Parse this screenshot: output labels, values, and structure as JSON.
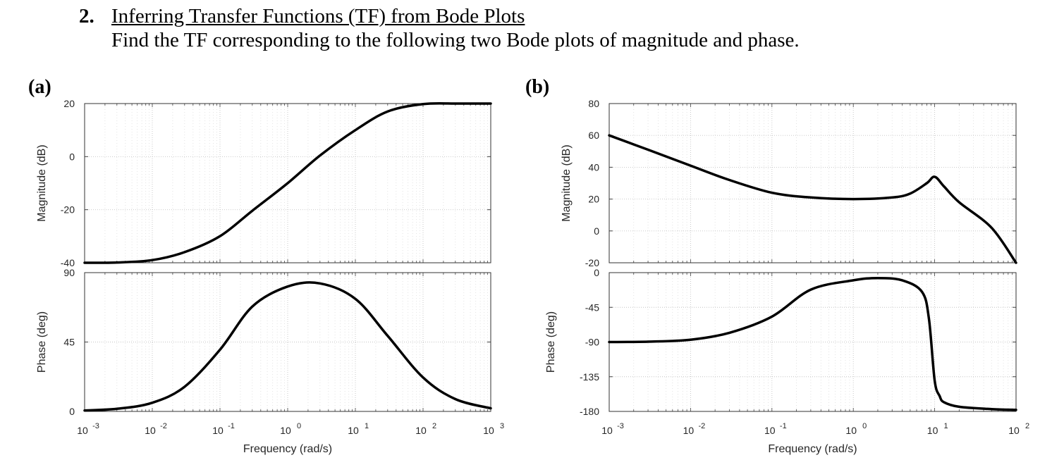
{
  "heading": {
    "number": "2.",
    "title": "Inferring Transfer Functions (TF) from Bode Plots",
    "subtitle": "Find the TF corresponding to the following two Bode plots of magnitude and phase."
  },
  "chart_data": [
    {
      "panel": "(a)",
      "subplot": "magnitude",
      "type": "line",
      "ylabel": "Magnitude (dB)",
      "xscale": "log",
      "xlim": [
        0.001,
        1000
      ],
      "ylim": [
        -40,
        20
      ],
      "yticks": [
        "-40",
        "-20",
        "0",
        "20"
      ],
      "grid": true,
      "series": [
        {
          "x": [
            0.001,
            0.003,
            0.01,
            0.03,
            0.1,
            0.3,
            1,
            3,
            10,
            30,
            100,
            300,
            1000
          ],
          "values": [
            -40,
            -39.9,
            -39,
            -36,
            -30,
            -20.4,
            -10,
            0.4,
            10,
            17,
            19.8,
            20,
            20
          ]
        }
      ]
    },
    {
      "panel": "(a)",
      "subplot": "phase",
      "type": "line",
      "ylabel": "Phase (deg)",
      "xlabel": "Frequency  (rad/s)",
      "xscale": "log",
      "xlim": [
        0.001,
        1000
      ],
      "ylim": [
        0,
        90
      ],
      "yticks": [
        "0",
        "45",
        "90"
      ],
      "xticks": [
        {
          "base": "10",
          "exp": "-3"
        },
        {
          "base": "10",
          "exp": "-2"
        },
        {
          "base": "10",
          "exp": "-1"
        },
        {
          "base": "10",
          "exp": "0"
        },
        {
          "base": "10",
          "exp": "1"
        },
        {
          "base": "10",
          "exp": "2"
        },
        {
          "base": "10",
          "exp": "3"
        }
      ],
      "grid": true,
      "series": [
        {
          "x": [
            0.001,
            0.003,
            0.01,
            0.03,
            0.1,
            0.3,
            1,
            3,
            10,
            30,
            100,
            300,
            1000
          ],
          "values": [
            0.6,
            1.7,
            5.6,
            16,
            40,
            68,
            81,
            83,
            73,
            49,
            22,
            8,
            2
          ]
        }
      ]
    },
    {
      "panel": "(b)",
      "subplot": "magnitude",
      "type": "line",
      "ylabel": "Magnitude (dB)",
      "xscale": "log",
      "xlim": [
        0.001,
        100
      ],
      "ylim": [
        -20,
        80
      ],
      "yticks": [
        "-20",
        "0",
        "20",
        "40",
        "60",
        "80"
      ],
      "grid": true,
      "series": [
        {
          "x": [
            0.001,
            0.003,
            0.01,
            0.03,
            0.1,
            0.3,
            1,
            3,
            5,
            8,
            10,
            13,
            20,
            50,
            100
          ],
          "values": [
            60,
            51,
            41,
            32,
            24,
            21,
            20,
            21,
            23.5,
            30,
            34,
            28,
            18,
            2,
            -20
          ]
        }
      ]
    },
    {
      "panel": "(b)",
      "subplot": "phase",
      "type": "line",
      "ylabel": "Phase (deg)",
      "xlabel": "Frequency  (rad/s)",
      "xscale": "log",
      "xlim": [
        0.001,
        100
      ],
      "ylim": [
        -180,
        0
      ],
      "yticks": [
        "-180",
        "-135",
        "-90",
        "-45",
        "0"
      ],
      "xticks": [
        {
          "base": "10",
          "exp": "-3"
        },
        {
          "base": "10",
          "exp": "-2"
        },
        {
          "base": "10",
          "exp": "-1"
        },
        {
          "base": "10",
          "exp": "0"
        },
        {
          "base": "10",
          "exp": "1"
        },
        {
          "base": "10",
          "exp": "2"
        }
      ],
      "grid": true,
      "series": [
        {
          "x": [
            0.001,
            0.003,
            0.01,
            0.03,
            0.1,
            0.3,
            1,
            2,
            4,
            7,
            8.5,
            10,
            11.5,
            13,
            20,
            50,
            100
          ],
          "values": [
            -90,
            -89.5,
            -87,
            -78,
            -57,
            -22,
            -10,
            -7,
            -10,
            -25,
            -60,
            -140,
            -160,
            -168,
            -174,
            -177,
            -178
          ]
        }
      ]
    }
  ],
  "panels": {
    "a_label": "(a)",
    "b_label": "(b)"
  }
}
